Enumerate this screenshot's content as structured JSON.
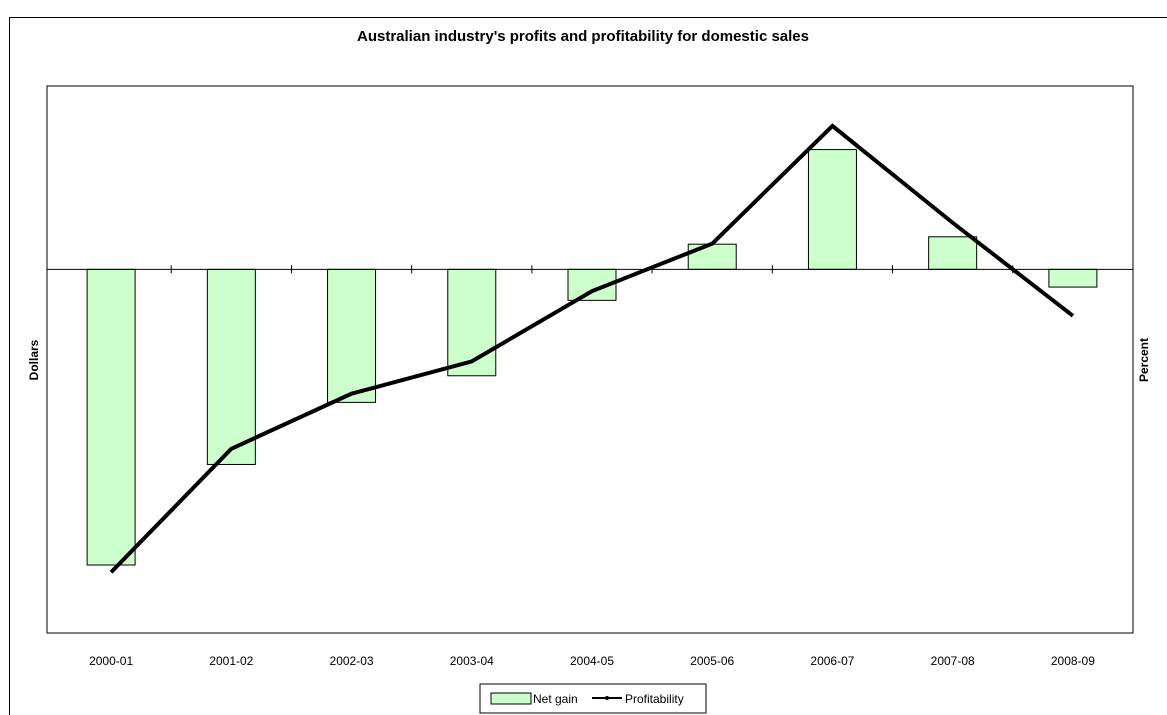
{
  "chart_data": {
    "type": "bar",
    "title": "Australian industry's profits and profitability  for domestic sales",
    "categories": [
      "2000-01",
      "2001-02",
      "2002-03",
      "2003-04",
      "2004-05",
      "2005-06",
      "2006-07",
      "2007-08",
      "2008-09"
    ],
    "ylabel_left": "Dollars",
    "ylabel_right": "Percent",
    "series": [
      {
        "name": "Net gain",
        "type": "bar",
        "values": [
          -100,
          -66,
          -45,
          -36,
          -10.5,
          8.5,
          40.5,
          11,
          -6
        ]
      },
      {
        "name": "Profitability",
        "type": "line",
        "values": [
          -80,
          -47.5,
          -33,
          -24.5,
          -6,
          6.5,
          37.5,
          12,
          -12.5
        ]
      }
    ],
    "ylim_left": [
      -123,
      62
    ],
    "ylim_right": [
      -96,
      48
    ],
    "legend_position": "bottom",
    "grid": false,
    "colors": {
      "bar_fill": "#ccffcc",
      "bar_stroke": "#000000",
      "line": "#000000"
    }
  }
}
